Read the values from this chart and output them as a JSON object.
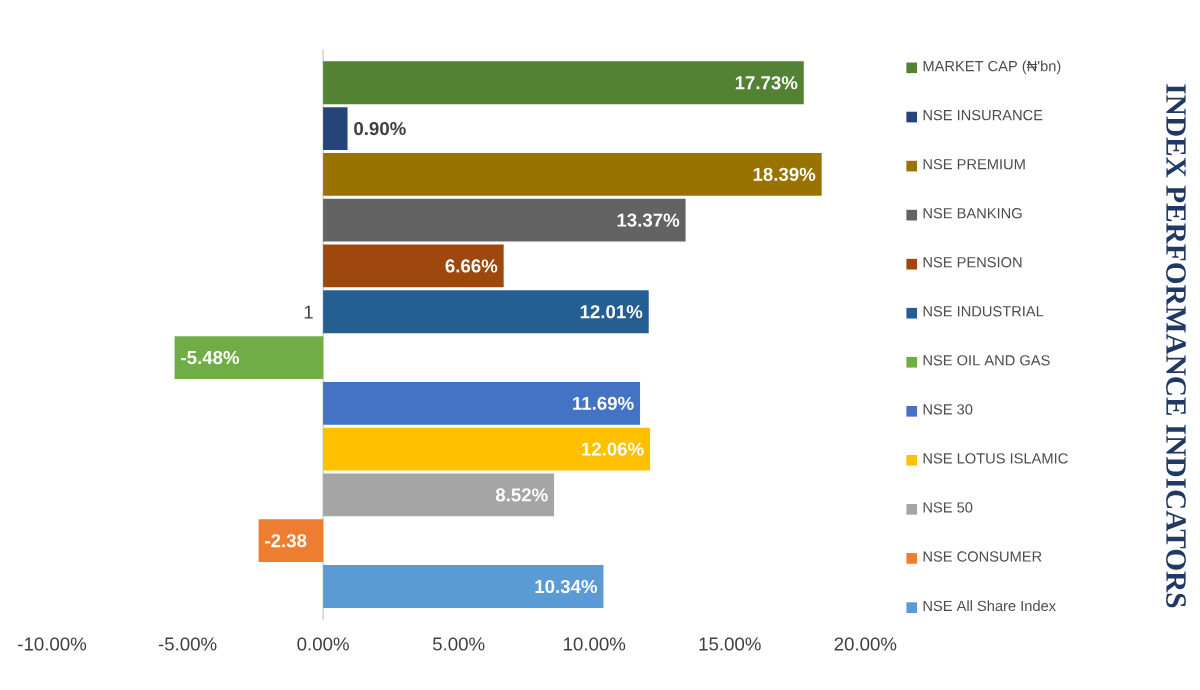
{
  "chart_data": {
    "type": "bar",
    "orientation": "horizontal",
    "title": "INDEX PERFORMANCE INDICATORS",
    "categories": [
      "1"
    ],
    "series": [
      {
        "name": "MARKET CAP (₦'bn)",
        "color": "#548235",
        "values": [
          17.73
        ],
        "value_labels": [
          "17.73%"
        ]
      },
      {
        "name": "NSE INSURANCE",
        "color": "#264478",
        "values": [
          0.9
        ],
        "value_labels": [
          "0.90%"
        ]
      },
      {
        "name": "NSE PREMIUM",
        "color": "#997300",
        "values": [
          18.39
        ],
        "value_labels": [
          "18.39%"
        ]
      },
      {
        "name": "NSE BANKING",
        "color": "#636363",
        "values": [
          13.37
        ],
        "value_labels": [
          "13.37%"
        ]
      },
      {
        "name": "NSE PENSION",
        "color": "#9e480e",
        "values": [
          6.66
        ],
        "value_labels": [
          "6.66%"
        ]
      },
      {
        "name": "NSE INDUSTRIAL",
        "color": "#255e91",
        "values": [
          12.01
        ],
        "value_labels": [
          "12.01%"
        ]
      },
      {
        "name": "NSE OIL AND GAS",
        "color": "#70ad47",
        "values": [
          -5.48
        ],
        "value_labels": [
          "-5.48%"
        ]
      },
      {
        "name": "NSE 30",
        "color": "#4472c4",
        "values": [
          11.69
        ],
        "value_labels": [
          "11.69%"
        ]
      },
      {
        "name": "NSE LOTUS ISLAMIC",
        "color": "#ffc000",
        "values": [
          12.06
        ],
        "value_labels": [
          "12.06%"
        ]
      },
      {
        "name": "NSE 50",
        "color": "#a5a5a5",
        "values": [
          8.52
        ],
        "value_labels": [
          "8.52%"
        ]
      },
      {
        "name": "NSE CONSUMER",
        "color": "#ed7d31",
        "values": [
          -2.38
        ],
        "value_labels": [
          "-2.38"
        ]
      },
      {
        "name": "NSE All Share Index",
        "color": "#5b9bd5",
        "values": [
          10.34
        ],
        "value_labels": [
          "10.34%"
        ]
      }
    ],
    "xlim": [
      -10,
      20
    ],
    "xticks": [
      {
        "value": -10,
        "label": "-10.00%"
      },
      {
        "value": -5,
        "label": "-5.00%"
      },
      {
        "value": 0,
        "label": "0.00%"
      },
      {
        "value": 5,
        "label": "5.00%"
      },
      {
        "value": 10,
        "label": "10.00%"
      },
      {
        "value": 15,
        "label": "15.00%"
      },
      {
        "value": 20,
        "label": "20.00%"
      }
    ],
    "legend": "right"
  }
}
